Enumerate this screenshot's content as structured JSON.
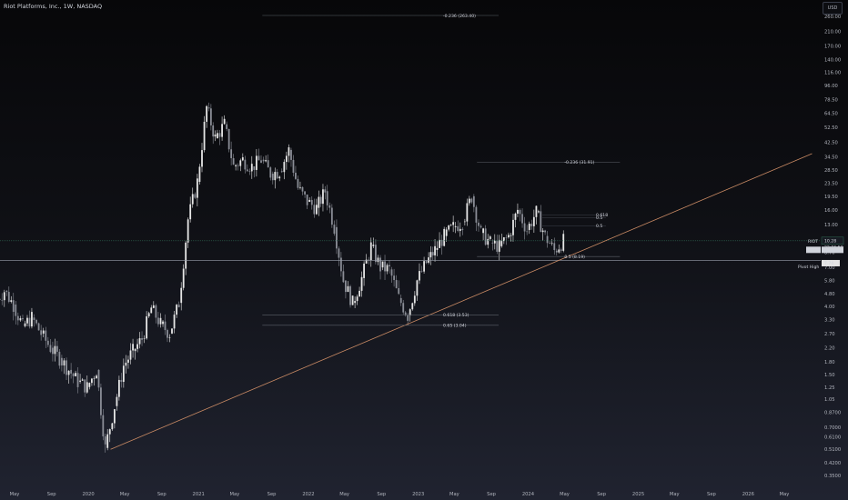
{
  "title": "Riot Platforms, Inc., 1W, NASDAQ",
  "currency": "USD",
  "colors": {
    "up": "#e6e6e6",
    "down": "#8a8d96",
    "trendline": "#c98a64",
    "fib_line": "#5d6069",
    "price_line": "#2f6b54",
    "axis_text": "#b2b5be"
  },
  "chart_data": {
    "type": "candlestick",
    "scale": "log",
    "ylim": [
      0.3,
      320
    ],
    "y_ticks": [
      "260.00",
      "210.00",
      "170.00",
      "140.00",
      "116.00",
      "96.00",
      "78.50",
      "64.50",
      "52.50",
      "42.50",
      "34.50",
      "28.50",
      "23.50",
      "19.50",
      "16.00",
      "13.00",
      "10.50",
      "8.70",
      "7.00",
      "5.80",
      "4.80",
      "4.00",
      "3.30",
      "2.70",
      "2.20",
      "1.80",
      "1.50",
      "1.25",
      "1.05",
      "0.8700",
      "0.7000",
      "0.6100",
      "0.5100",
      "0.4200",
      "0.3500"
    ],
    "y_tick_values": [
      260,
      210,
      170,
      140,
      116,
      96,
      78.5,
      64.5,
      52.5,
      42.5,
      34.5,
      28.5,
      23.5,
      19.5,
      16,
      13,
      10.5,
      8.7,
      7,
      5.8,
      4.8,
      4,
      3.3,
      2.7,
      2.2,
      1.8,
      1.5,
      1.25,
      1.05,
      0.87,
      0.7,
      0.61,
      0.51,
      0.42,
      0.35
    ],
    "x_ticks": [
      {
        "label": "May",
        "date": "2019-05-01"
      },
      {
        "label": "Sep",
        "date": "2019-09-01"
      },
      {
        "label": "2020",
        "date": "2020-01-01"
      },
      {
        "label": "May",
        "date": "2020-05-01"
      },
      {
        "label": "Sep",
        "date": "2020-09-01"
      },
      {
        "label": "2021",
        "date": "2021-01-01"
      },
      {
        "label": "May",
        "date": "2021-05-01"
      },
      {
        "label": "Sep",
        "date": "2021-09-01"
      },
      {
        "label": "2022",
        "date": "2022-01-01"
      },
      {
        "label": "May",
        "date": "2022-05-01"
      },
      {
        "label": "Sep",
        "date": "2022-09-01"
      },
      {
        "label": "2023",
        "date": "2023-01-01"
      },
      {
        "label": "May",
        "date": "2023-05-01"
      },
      {
        "label": "Sep",
        "date": "2023-09-01"
      },
      {
        "label": "2024",
        "date": "2024-01-01"
      },
      {
        "label": "May",
        "date": "2024-05-01"
      },
      {
        "label": "Sep",
        "date": "2024-09-01"
      },
      {
        "label": "2025",
        "date": "2025-01-01"
      },
      {
        "label": "May",
        "date": "2025-05-01"
      },
      {
        "label": "Sep",
        "date": "2025-09-01"
      },
      {
        "label": "2026",
        "date": "2026-01-01"
      },
      {
        "label": "May",
        "date": "2026-05-01"
      }
    ],
    "price_path": [
      [
        "2019-03-01",
        4.3
      ],
      [
        "2019-04-01",
        5.0
      ],
      [
        "2019-05-01",
        4.1
      ],
      [
        "2019-06-01",
        3.0
      ],
      [
        "2019-07-01",
        3.4
      ],
      [
        "2019-08-01",
        2.7
      ],
      [
        "2019-09-01",
        2.2
      ],
      [
        "2019-10-01",
        1.9
      ],
      [
        "2019-11-01",
        1.6
      ],
      [
        "2019-12-01",
        1.35
      ],
      [
        "2020-01-01",
        1.25
      ],
      [
        "2020-02-01",
        1.6
      ],
      [
        "2020-03-01",
        0.52
      ],
      [
        "2020-04-01",
        0.95
      ],
      [
        "2020-05-01",
        1.7
      ],
      [
        "2020-06-01",
        2.1
      ],
      [
        "2020-07-01",
        2.5
      ],
      [
        "2020-08-01",
        3.9
      ],
      [
        "2020-09-01",
        3.1
      ],
      [
        "2020-10-01",
        2.7
      ],
      [
        "2020-11-01",
        4.2
      ],
      [
        "2020-12-01",
        14.0
      ],
      [
        "2021-01-01",
        24.0
      ],
      [
        "2021-02-01",
        70.0
      ],
      [
        "2021-03-01",
        45.0
      ],
      [
        "2021-04-01",
        55.0
      ],
      [
        "2021-05-01",
        30.0
      ],
      [
        "2021-06-01",
        33.0
      ],
      [
        "2021-07-01",
        30.0
      ],
      [
        "2021-08-01",
        33.0
      ],
      [
        "2021-09-01",
        27.0
      ],
      [
        "2021-10-01",
        28.0
      ],
      [
        "2021-11-01",
        38.0
      ],
      [
        "2021-12-01",
        22.0
      ],
      [
        "2022-01-01",
        18.0
      ],
      [
        "2022-02-01",
        16.5
      ],
      [
        "2022-03-01",
        21.0
      ],
      [
        "2022-04-01",
        12.5
      ],
      [
        "2022-05-01",
        5.8
      ],
      [
        "2022-06-01",
        4.2
      ],
      [
        "2022-07-01",
        6.0
      ],
      [
        "2022-08-01",
        9.5
      ],
      [
        "2022-09-01",
        7.0
      ],
      [
        "2022-10-01",
        6.8
      ],
      [
        "2022-11-01",
        4.5
      ],
      [
        "2022-12-01",
        3.5
      ],
      [
        "2023-01-01",
        5.8
      ],
      [
        "2023-02-01",
        7.5
      ],
      [
        "2023-03-01",
        9.0
      ],
      [
        "2023-04-01",
        11.0
      ],
      [
        "2023-05-01",
        12.5
      ],
      [
        "2023-06-01",
        13.5
      ],
      [
        "2023-07-01",
        19.5
      ],
      [
        "2023-08-01",
        11.5
      ],
      [
        "2023-09-01",
        10.0
      ],
      [
        "2023-10-01",
        9.5
      ],
      [
        "2023-11-01",
        11.0
      ],
      [
        "2023-12-01",
        16.0
      ],
      [
        "2024-01-01",
        12.0
      ],
      [
        "2024-02-01",
        15.5
      ],
      [
        "2024-03-01",
        11.0
      ],
      [
        "2024-04-01",
        8.9
      ],
      [
        "2024-05-01",
        10.3
      ]
    ],
    "trendline": {
      "from": [
        "2020-03-15",
        0.51
      ],
      "to": [
        "2026-08-01",
        36.0
      ]
    },
    "horizontal_lines": [
      {
        "price": 10.28,
        "kind": "current-price"
      },
      {
        "price": 7.74,
        "kind": "pivot"
      }
    ],
    "fib_levels": [
      {
        "label": "-0.236 (263.40)",
        "price": 263.4,
        "from": "2021-08-01",
        "to": "2023-09-25"
      },
      {
        "label": "-0.236 (31.91)",
        "price": 31.91,
        "from": "2023-07-15",
        "to": "2024-11-01"
      },
      {
        "label": "0.5 (8.19)",
        "price": 8.19,
        "from": "2023-07-15",
        "to": "2024-11-01"
      },
      {
        "label": "0.618 (3.53)",
        "price": 3.53,
        "from": "2021-08-01",
        "to": "2023-09-25"
      },
      {
        "label": "0.65 (3.04)",
        "price": 3.04,
        "from": "2021-08-01",
        "to": "2023-09-25"
      }
    ],
    "small_fib_labels": [
      {
        "label": "0.5",
        "price": 12.7
      },
      {
        "label": "0.5",
        "price": 14.3
      },
      {
        "label": "0.618",
        "price": 14.9
      }
    ],
    "price_badges": [
      {
        "label": "RIOT",
        "value": "10.28",
        "time": "22:06:50",
        "price": 10.28
      },
      {
        "label": "RIOT",
        "value": "10.28",
        "price": 9.5
      },
      {
        "label": "Pivot High",
        "value": "7.74",
        "price": 7.74
      }
    ]
  }
}
